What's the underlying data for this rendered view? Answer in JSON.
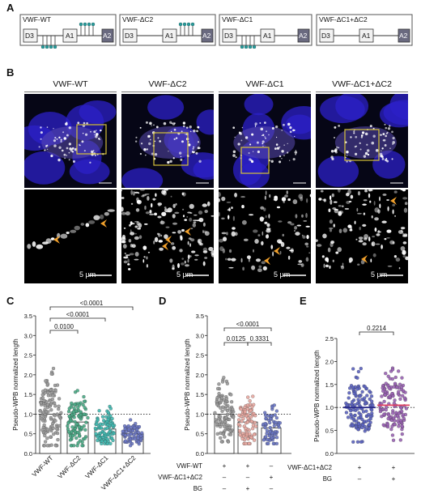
{
  "panel_labels": {
    "A": "A",
    "B": "B",
    "C": "C",
    "D": "D",
    "E": "E"
  },
  "constructs": [
    {
      "name": "VWF-WT",
      "domains": [
        "D3",
        "A1",
        "A2"
      ],
      "c1_glycans": true,
      "c2_glycans": true
    },
    {
      "name": "VWF-ΔC2",
      "domains": [
        "D3",
        "A1",
        "A2"
      ],
      "c1_glycans": true,
      "c2_glycans": false
    },
    {
      "name": "VWF-ΔC1",
      "domains": [
        "D3",
        "A1",
        "A2"
      ],
      "c1_glycans": false,
      "c2_glycans": true
    },
    {
      "name": "VWF-ΔC1+ΔC2",
      "domains": [
        "D3",
        "A1",
        "A2"
      ],
      "c1_glycans": false,
      "c2_glycans": false
    }
  ],
  "micrograph_columns": [
    "VWF-WT",
    "VWF-ΔC2",
    "VWF-ΔC1",
    "VWF-ΔC1+ΔC2"
  ],
  "scale_bar_label": "5 µm",
  "colors": {
    "glycan": "#2a9c9c",
    "box_zoom": "#d6c23a",
    "arrow": "#f0a02c",
    "a2": "#6a6a80",
    "nucleus": "#2b1fd0"
  },
  "chart_data": [
    {
      "panel": "C",
      "type": "scatter",
      "ylabel": "Pseudo-WPB normalized length",
      "ylim": [
        0,
        3.5
      ],
      "yticks": [
        0.0,
        0.5,
        1.0,
        1.5,
        2.0,
        2.5,
        3.0,
        3.5
      ],
      "reference_line": 1.0,
      "categories": [
        "VWF-WT",
        "VWF-ΔC2",
        "VWF-ΔC1",
        "VWF-ΔC1+ΔC2"
      ],
      "bar_means": [
        1.0,
        0.8,
        0.62,
        0.5
      ],
      "colors": [
        "#9a9a9a",
        "#4aaa86",
        "#40b8b0",
        "#6a76c4"
      ],
      "spread": [
        [
          0.2,
          2.55
        ],
        [
          0.2,
          1.95
        ],
        [
          0.25,
          1.4
        ],
        [
          0.2,
          1.0
        ]
      ],
      "n_points": [
        130,
        110,
        90,
        80
      ],
      "comparisons": [
        {
          "from": 0,
          "to": 1,
          "p": "0.0100"
        },
        {
          "from": 0,
          "to": 2,
          "p": "<0.0001"
        },
        {
          "from": 0,
          "to": 3,
          "p": "<0.0001"
        }
      ]
    },
    {
      "panel": "D",
      "type": "scatter",
      "ylabel": "Pseudo-WPB normalized length",
      "ylim": [
        0,
        3.5
      ],
      "yticks": [
        0.0,
        0.5,
        1.0,
        1.5,
        2.0,
        2.5,
        3.0,
        3.5
      ],
      "reference_line": 1.0,
      "bar_means": [
        1.0,
        0.8,
        0.65
      ],
      "colors": [
        "#9a9a9a",
        "#e8a8a0",
        "#6a76c4"
      ],
      "spread": [
        [
          0.3,
          2.2
        ],
        [
          0.25,
          1.9
        ],
        [
          0.25,
          1.45
        ]
      ],
      "n_points": [
        110,
        90,
        70
      ],
      "comparisons": [
        {
          "from": 0,
          "to": 1,
          "p": "0.0125"
        },
        {
          "from": 1,
          "to": 2,
          "p": "0.3331"
        },
        {
          "from": 0,
          "to": 2,
          "p": "<0.0001"
        }
      ],
      "conditions": [
        {
          "label": "VWF-WT",
          "values": [
            "+",
            "+",
            "–"
          ]
        },
        {
          "label": "VWF-ΔC1+ΔC2",
          "values": [
            "–",
            "–",
            "+"
          ]
        },
        {
          "label": "BG",
          "values": [
            "–",
            "+",
            "–"
          ]
        }
      ]
    },
    {
      "panel": "E",
      "type": "scatter",
      "ylabel": "Pseudo-WPB normalized length",
      "ylim": [
        0,
        2.5
      ],
      "yticks": [
        0.0,
        0.5,
        1.0,
        1.5,
        2.0,
        2.5
      ],
      "reference_line": 1.0,
      "medians": [
        1.0,
        1.05
      ],
      "colors": [
        "#5a62c0",
        "#9a62b4"
      ],
      "median_colors": [
        "#2a2a8a",
        "#e04060"
      ],
      "spread": [
        [
          0.25,
          2.0
        ],
        [
          0.25,
          2.0
        ]
      ],
      "n_points": [
        140,
        140
      ],
      "comparisons": [
        {
          "from": 0,
          "to": 1,
          "p": "0.2214"
        }
      ],
      "conditions": [
        {
          "label": "VWF-ΔC1+ΔC2",
          "values": [
            "+",
            "+"
          ]
        },
        {
          "label": "BG",
          "values": [
            "–",
            "+"
          ]
        }
      ]
    }
  ]
}
